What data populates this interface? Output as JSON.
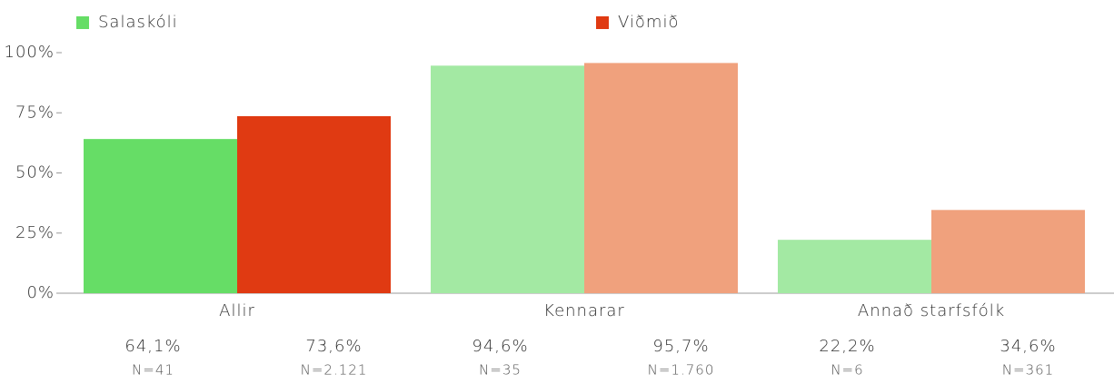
{
  "chart_data": {
    "type": "bar",
    "categories": [
      "Allir",
      "Kennarar",
      "Annað starfsfólk"
    ],
    "series": [
      {
        "name": "Salaskóli",
        "color": "#66dd66",
        "colors": [
          "#66dd66",
          "#a3e9a3",
          "#a3e9a3"
        ],
        "values": [
          64.1,
          94.6,
          22.2
        ],
        "value_labels": [
          "64,1%",
          "94,6%",
          "22,2%"
        ],
        "n_labels": [
          "N=41",
          "N=35",
          "N=6"
        ]
      },
      {
        "name": "Viðmið",
        "color": "#e03a12",
        "colors": [
          "#e03a12",
          "#f0a17d",
          "#f0a17d"
        ],
        "values": [
          73.6,
          95.7,
          34.6
        ],
        "value_labels": [
          "73,6%",
          "95,7%",
          "34,6%"
        ],
        "n_labels": [
          "N=2.121",
          "N=1.760",
          "N=361"
        ]
      }
    ],
    "ylim": [
      0,
      100
    ],
    "yticks": [
      {
        "value": 0,
        "label": "0%"
      },
      {
        "value": 25,
        "label": "25%"
      },
      {
        "value": 50,
        "label": "50%"
      },
      {
        "value": 75,
        "label": "75%"
      },
      {
        "value": 100,
        "label": "100%"
      }
    ],
    "legend": "top"
  }
}
